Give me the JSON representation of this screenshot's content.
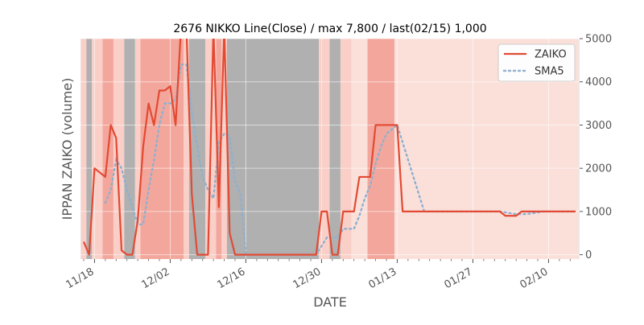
{
  "chart_data": {
    "type": "line",
    "title": "2676 NIKKO Line(Close) / max 7,800 / last(02/15) 1,000",
    "xlabel": "DATE",
    "ylabel": "IPPAN ZAIKO (volume)",
    "ylim": [
      -100,
      5000
    ],
    "yticks": [
      0,
      1000,
      2000,
      3000,
      4000,
      5000
    ],
    "ytick_labels": [
      "0",
      "1000",
      "2000",
      "3000",
      "4000",
      "5000"
    ],
    "y_axis_side": "right",
    "xticks": [
      {
        "label": "11/18",
        "index": 2
      },
      {
        "label": "12/02",
        "index": 16
      },
      {
        "label": "12/16",
        "index": 30
      },
      {
        "label": "12/30",
        "index": 44
      },
      {
        "label": "01/13",
        "index": 58
      },
      {
        "label": "01/27",
        "index": 72
      },
      {
        "label": "02/10",
        "index": 86
      }
    ],
    "grid": true,
    "legend_position": "top-right",
    "colors": {
      "zaiko": "#e24a33",
      "sma5": "#8eb0cf",
      "band_gray": "#b0b0b0",
      "band_red_strong": "#f3a79c",
      "band_red_light": "#f9cfc8",
      "band_red_faint": "#fbe0da",
      "background": "#e8e8e8"
    },
    "series": [
      {
        "name": "ZAIKO",
        "values": [
          300,
          0,
          2000,
          1900,
          1800,
          3000,
          2700,
          100,
          0,
          0,
          800,
          2500,
          3500,
          3000,
          3800,
          3800,
          3900,
          3000,
          7800,
          7800,
          1400,
          0,
          0,
          0,
          7800,
          1100,
          7800,
          500,
          0,
          0,
          0,
          0,
          0,
          0,
          0,
          0,
          0,
          0,
          0,
          0,
          0,
          0,
          0,
          0,
          1000,
          1000,
          0,
          0,
          1000,
          1000,
          1000,
          1800,
          1800,
          1800,
          3000,
          3000,
          3000,
          3000,
          3000,
          1000,
          1000,
          1000,
          1000,
          1000,
          1000,
          1000,
          1000,
          1000,
          1000,
          1000,
          1000,
          1000,
          1000,
          1000,
          1000,
          1000,
          1000,
          1000,
          900,
          900,
          900,
          1000,
          1000,
          1000,
          1000,
          1000,
          1000,
          1000,
          1000,
          1000,
          1000,
          1000
        ]
      },
      {
        "name": "SMA5",
        "values": [
          null,
          null,
          null,
          null,
          1200,
          1500,
          2200,
          2000,
          1500,
          1100,
          700,
          700,
          1500,
          2200,
          3000,
          3500,
          3500,
          3600,
          4400,
          4400,
          3300,
          2500,
          1800,
          1500,
          1300,
          2600,
          2800,
          2750,
          1700,
          1400,
          0,
          0,
          0,
          0,
          0,
          0,
          0,
          0,
          0,
          0,
          0,
          0,
          0,
          0,
          200,
          400,
          400,
          400,
          600,
          600,
          600,
          900,
          1300,
          1600,
          2100,
          2500,
          2800,
          2900,
          3000,
          2600,
          2200,
          1800,
          1400,
          1000,
          1000,
          1000,
          1000,
          1000,
          1000,
          1000,
          1000,
          1000,
          1000,
          1000,
          1000,
          1000,
          1000,
          1000,
          980,
          960,
          940,
          940,
          940,
          960,
          980,
          1000,
          1000,
          1000,
          1000,
          1000,
          1000,
          1000
        ]
      }
    ],
    "bands": [
      {
        "from": 0,
        "to": 1,
        "kind": "light"
      },
      {
        "from": 1,
        "to": 2,
        "kind": "gray"
      },
      {
        "from": 2,
        "to": 4,
        "kind": "light"
      },
      {
        "from": 4,
        "to": 6,
        "kind": "strong"
      },
      {
        "from": 6,
        "to": 8,
        "kind": "light"
      },
      {
        "from": 8,
        "to": 10,
        "kind": "gray"
      },
      {
        "from": 10,
        "to": 11,
        "kind": "light"
      },
      {
        "from": 11,
        "to": 19,
        "kind": "strong"
      },
      {
        "from": 19,
        "to": 20,
        "kind": "light"
      },
      {
        "from": 20,
        "to": 23,
        "kind": "gray"
      },
      {
        "from": 23,
        "to": 25,
        "kind": "light"
      },
      {
        "from": 25,
        "to": 26,
        "kind": "strong"
      },
      {
        "from": 26,
        "to": 27,
        "kind": "light"
      },
      {
        "from": 27,
        "to": 44,
        "kind": "gray"
      },
      {
        "from": 44,
        "to": 46,
        "kind": "light"
      },
      {
        "from": 46,
        "to": 48,
        "kind": "gray"
      },
      {
        "from": 48,
        "to": 50,
        "kind": "light"
      },
      {
        "from": 50,
        "to": 53,
        "kind": "faint"
      },
      {
        "from": 53,
        "to": 58,
        "kind": "strong"
      },
      {
        "from": 58,
        "to": 92,
        "kind": "faint"
      }
    ]
  }
}
